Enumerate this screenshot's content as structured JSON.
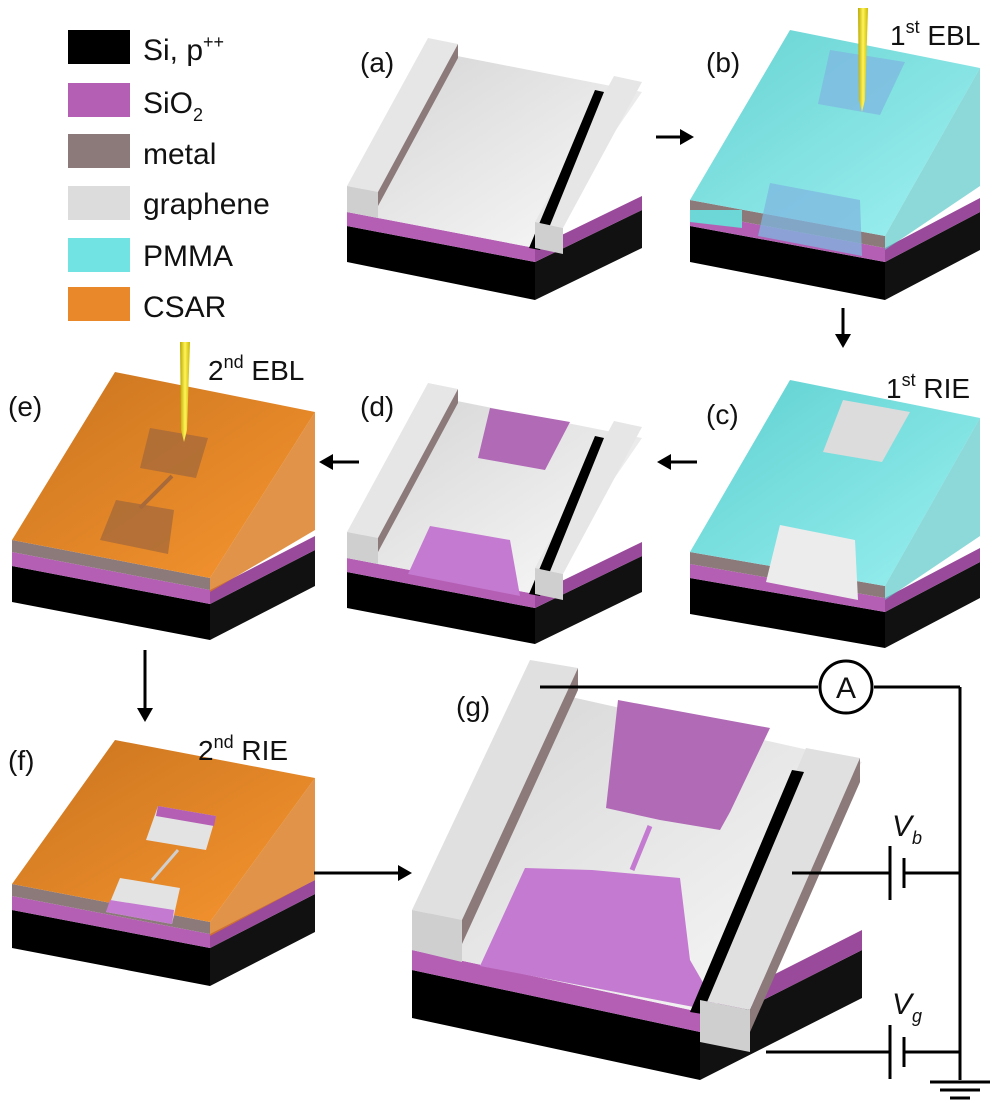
{
  "legend": {
    "items": [
      {
        "text": "Si, p",
        "sup": "++",
        "color": "#000000"
      },
      {
        "text": "SiO",
        "sub": "2",
        "color": "#b45fb4"
      },
      {
        "text": "metal",
        "color": "#8c7a7a"
      },
      {
        "text": "graphene",
        "color": "#d9d9d9"
      },
      {
        "text": "PMMA",
        "color": "#6fe0e0"
      },
      {
        "text": "CSAR",
        "color": "#e8882a"
      }
    ]
  },
  "panels": {
    "a": {
      "label": "(a)"
    },
    "b": {
      "label": "(b)",
      "step_num": "1",
      "step_sup": "st",
      "step_text": " EBL"
    },
    "c": {
      "label": "(c)",
      "step_num": "1",
      "step_sup": "st",
      "step_text": " RIE"
    },
    "d": {
      "label": "(d)"
    },
    "e": {
      "label": "(e)",
      "step_num": "2",
      "step_sup": "nd",
      "step_text": " EBL"
    },
    "f": {
      "label": "(f)",
      "step_num": "2",
      "step_sup": "nd",
      "step_text": " RIE"
    },
    "g": {
      "label": "(g)"
    }
  },
  "circuit": {
    "ammeter": "A",
    "vb_main": "V",
    "vb_sub": "b",
    "vg_main": "V",
    "vg_sub": "g"
  },
  "colors": {
    "si": "#000000",
    "sio2": "#b45fb4",
    "metal": "#8c7a7a",
    "graphene": "#e3e3e3",
    "pmma": "#7fe6e6",
    "csar": "#ee8d2d",
    "tip": "#f2e200"
  }
}
